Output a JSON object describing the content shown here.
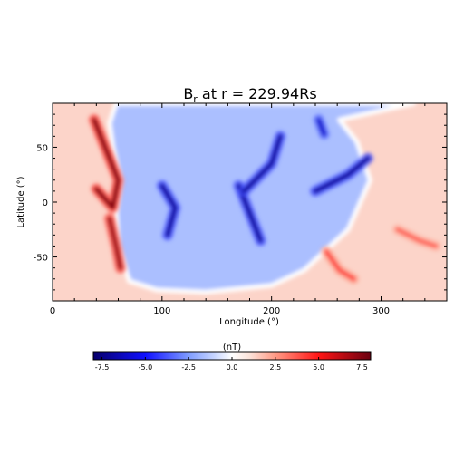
{
  "chart_data": [
    {
      "type": "heatmap",
      "title_main": "B",
      "title_sub": "r",
      "title_rest": " at r = 229.94Rs",
      "xlabel": "Longitude (°)",
      "ylabel": "Latitude (°)",
      "xlim": [
        0,
        360
      ],
      "ylim": [
        -90,
        90
      ],
      "xticks": [
        "0",
        "100",
        "200",
        "300"
      ],
      "xtick_values": [
        0,
        100,
        200,
        300
      ],
      "yticks": [
        "50",
        "0",
        "-50"
      ],
      "ytick_values": [
        50,
        0,
        -50
      ],
      "colormap": {
        "min": -8,
        "max": 8,
        "stops": [
          {
            "value": -8,
            "color": "#08006b"
          },
          {
            "value": -5,
            "color": "#1010ff"
          },
          {
            "value": -2.5,
            "color": "#7f9cff"
          },
          {
            "value": -1,
            "color": "#c8d6ff"
          },
          {
            "value": 0,
            "color": "#ffffff"
          },
          {
            "value": 1,
            "color": "#fbe3da"
          },
          {
            "value": 2.5,
            "color": "#ff9a85"
          },
          {
            "value": 5,
            "color": "#ff1515"
          },
          {
            "value": 8,
            "color": "#6b0010"
          }
        ]
      },
      "background": {
        "negative_region_value": -1.6,
        "positive_region_value": 1.3
      },
      "current_sheet_boundary": [
        {
          "lon": 58,
          "lat": 90
        },
        {
          "lon": 52,
          "lat": 72
        },
        {
          "lon": 55,
          "lat": 50
        },
        {
          "lon": 62,
          "lat": 20
        },
        {
          "lon": 58,
          "lat": -10
        },
        {
          "lon": 60,
          "lat": -40
        },
        {
          "lon": 70,
          "lat": -72
        },
        {
          "lon": 95,
          "lat": -80
        },
        {
          "lon": 140,
          "lat": -82
        },
        {
          "lon": 200,
          "lat": -76
        },
        {
          "lon": 230,
          "lat": -62
        },
        {
          "lon": 270,
          "lat": -25
        },
        {
          "lon": 290,
          "lat": 20
        },
        {
          "lon": 278,
          "lat": 55
        },
        {
          "lon": 262,
          "lat": 75
        },
        {
          "lon": 330,
          "lat": 90
        }
      ],
      "features": [
        {
          "kind": "positive_ridge",
          "peak": 7.5,
          "points": [
            {
              "lon": 38,
              "lat": 75
            },
            {
              "lon": 50,
              "lat": 45
            },
            {
              "lon": 60,
              "lat": 20
            },
            {
              "lon": 55,
              "lat": -5
            },
            {
              "lon": 40,
              "lat": 12
            }
          ]
        },
        {
          "kind": "positive_ridge",
          "peak": 7.0,
          "points": [
            {
              "lon": 52,
              "lat": -15
            },
            {
              "lon": 58,
              "lat": -40
            },
            {
              "lon": 62,
              "lat": -60
            }
          ]
        },
        {
          "kind": "negative_ridge",
          "peak": -7.0,
          "points": [
            {
              "lon": 100,
              "lat": 15
            },
            {
              "lon": 112,
              "lat": -5
            },
            {
              "lon": 105,
              "lat": -30
            }
          ]
        },
        {
          "kind": "negative_ridge",
          "peak": -7.0,
          "points": [
            {
              "lon": 170,
              "lat": 15
            },
            {
              "lon": 180,
              "lat": -10
            },
            {
              "lon": 190,
              "lat": -35
            }
          ]
        },
        {
          "kind": "negative_ridge",
          "peak": -7.0,
          "points": [
            {
              "lon": 175,
              "lat": 10
            },
            {
              "lon": 200,
              "lat": 35
            },
            {
              "lon": 208,
              "lat": 60
            }
          ]
        },
        {
          "kind": "negative_ridge",
          "peak": -7.0,
          "points": [
            {
              "lon": 240,
              "lat": 10
            },
            {
              "lon": 270,
              "lat": 25
            },
            {
              "lon": 288,
              "lat": 40
            }
          ]
        },
        {
          "kind": "negative_ridge",
          "peak": -6.0,
          "points": [
            {
              "lon": 243,
              "lat": 75
            },
            {
              "lon": 248,
              "lat": 62
            }
          ]
        },
        {
          "kind": "positive_ridge",
          "peak": 4.0,
          "points": [
            {
              "lon": 250,
              "lat": -45
            },
            {
              "lon": 262,
              "lat": -62
            },
            {
              "lon": 275,
              "lat": -70
            }
          ]
        },
        {
          "kind": "positive_ridge",
          "peak": 3.5,
          "points": [
            {
              "lon": 315,
              "lat": -25
            },
            {
              "lon": 335,
              "lat": -35
            },
            {
              "lon": 350,
              "lat": -40
            }
          ]
        }
      ]
    },
    {
      "type": "colorbar",
      "label": "(nT)",
      "range": [
        -8,
        8
      ],
      "ticks": [
        "-7.5",
        "-5.0",
        "-2.5",
        "0.0",
        "2.5",
        "5.0",
        "7.5"
      ],
      "tick_values": [
        -7.5,
        -5.0,
        -2.5,
        0.0,
        2.5,
        5.0,
        7.5
      ]
    }
  ]
}
